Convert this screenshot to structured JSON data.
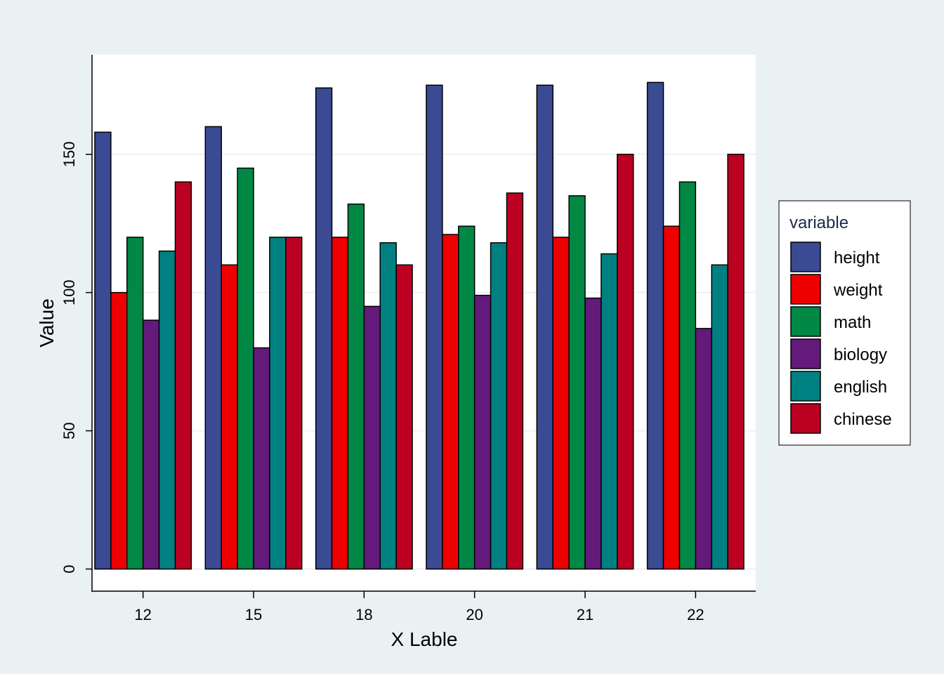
{
  "chart_data": {
    "type": "bar",
    "xlabel": "X Lable",
    "ylabel": "Value",
    "categories": [
      "12",
      "15",
      "18",
      "20",
      "21",
      "22"
    ],
    "ylim": [
      -8,
      186
    ],
    "yticks": [
      0,
      50,
      100,
      150
    ],
    "grid": true,
    "legend": {
      "title": "variable",
      "position": "right"
    },
    "series": [
      {
        "name": "height",
        "color": "#3a4a93",
        "values": [
          158,
          160,
          174,
          175,
          175,
          176
        ]
      },
      {
        "name": "weight",
        "color": "#ee0000",
        "values": [
          100,
          110,
          120,
          121,
          120,
          124
        ]
      },
      {
        "name": "math",
        "color": "#008844",
        "values": [
          120,
          145,
          132,
          124,
          135,
          140
        ]
      },
      {
        "name": "biology",
        "color": "#631a7a",
        "values": [
          90,
          80,
          95,
          99,
          98,
          87
        ]
      },
      {
        "name": "english",
        "color": "#008080",
        "values": [
          115,
          120,
          118,
          118,
          114,
          110
        ]
      },
      {
        "name": "chinese",
        "color": "#bb0022",
        "values": [
          140,
          120,
          110,
          136,
          150,
          150
        ]
      }
    ]
  }
}
